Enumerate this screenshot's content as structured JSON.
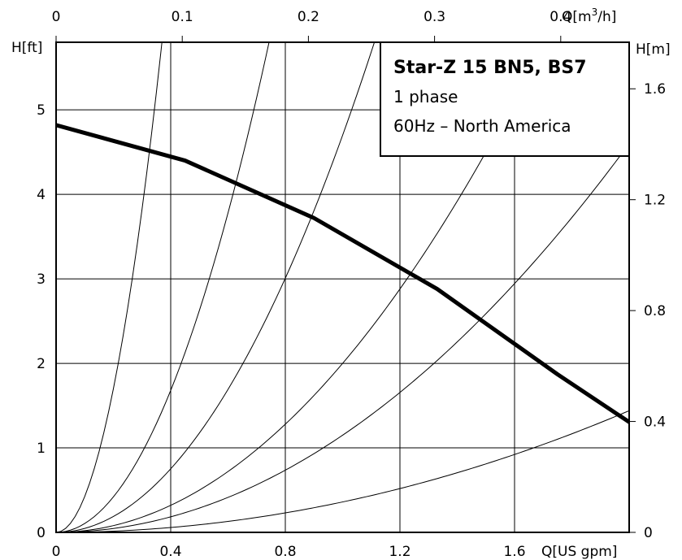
{
  "chart_data": {
    "type": "line",
    "title": "Star-Z 15 BN5, BS7",
    "subtitle_lines": [
      "1 phase",
      "60Hz – North America"
    ],
    "x_bottom": {
      "label": "Q[US gpm]",
      "range": [
        0,
        2.0
      ],
      "ticks": [
        "0",
        "0.4",
        "0.8",
        "1.2",
        "1.6"
      ],
      "tick_values": [
        0,
        0.4,
        0.8,
        1.2,
        1.6
      ]
    },
    "x_top": {
      "label": "Q[m³/h]",
      "ticks": [
        "0",
        "0.1",
        "0.2",
        "0.3",
        "0.4"
      ],
      "tick_values": [
        0,
        0.1,
        0.2,
        0.3,
        0.4
      ]
    },
    "y_left": {
      "label": "H[ft]",
      "range": [
        0,
        5.8
      ],
      "ticks": [
        "0",
        "1",
        "2",
        "3",
        "4",
        "5"
      ],
      "tick_values": [
        0,
        1,
        2,
        3,
        4,
        5
      ]
    },
    "y_right": {
      "label": "H[m]",
      "ticks": [
        "0",
        "0.4",
        "0.8",
        "1.2",
        "1.6"
      ],
      "tick_values": [
        0,
        0.4,
        0.8,
        1.2,
        1.6
      ]
    },
    "grid": true,
    "series": [
      {
        "kind": "pump-curve",
        "x": [
          0,
          0.45,
          0.9,
          1.33,
          1.75,
          2.06
        ],
        "y": [
          4.82,
          4.4,
          3.72,
          2.88,
          1.87,
          1.17
        ]
      }
    ],
    "system_curves_k": [
      42.5,
      10.5,
      4.7,
      2.0,
      1.15,
      0.36
    ]
  }
}
